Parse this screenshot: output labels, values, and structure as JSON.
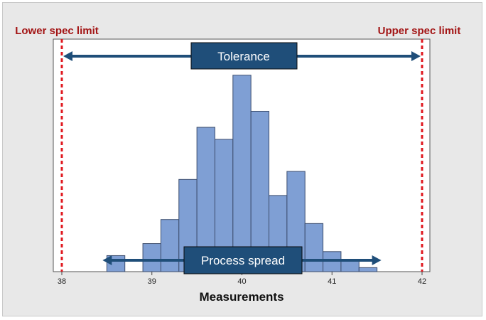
{
  "chart_data": {
    "type": "bar",
    "subtype": "histogram",
    "xlabel": "Measurements",
    "xlim": [
      38,
      42
    ],
    "x_ticks": [
      "38",
      "39",
      "40",
      "41",
      "42"
    ],
    "ylim": [
      0,
      29
    ],
    "bin_width": 0.2,
    "bins": [
      {
        "x0": 38.5,
        "x1": 38.7,
        "count": 2
      },
      {
        "x0": 38.7,
        "x1": 38.9,
        "count": 0
      },
      {
        "x0": 38.9,
        "x1": 39.1,
        "count": 3.5
      },
      {
        "x0": 39.1,
        "x1": 39.3,
        "count": 6.5
      },
      {
        "x0": 39.3,
        "x1": 39.5,
        "count": 11.5
      },
      {
        "x0": 39.5,
        "x1": 39.7,
        "count": 18
      },
      {
        "x0": 39.7,
        "x1": 39.9,
        "count": 16.5
      },
      {
        "x0": 39.9,
        "x1": 40.1,
        "count": 24.5
      },
      {
        "x0": 40.1,
        "x1": 40.3,
        "count": 20
      },
      {
        "x0": 40.3,
        "x1": 40.5,
        "count": 9.5
      },
      {
        "x0": 40.5,
        "x1": 40.7,
        "count": 12.5
      },
      {
        "x0": 40.7,
        "x1": 40.9,
        "count": 6
      },
      {
        "x0": 40.9,
        "x1": 41.1,
        "count": 2.5
      },
      {
        "x0": 41.1,
        "x1": 41.3,
        "count": 1.5
      },
      {
        "x0": 41.3,
        "x1": 41.5,
        "count": 0.5
      }
    ],
    "spec_limits": [
      {
        "label": "Lower spec limit",
        "x": 38
      },
      {
        "label": "Upper spec limit",
        "x": 42
      }
    ],
    "annotations": {
      "tolerance": {
        "label": "Tolerance",
        "from": 38,
        "to": 42
      },
      "process_spread": {
        "label": "Process spread",
        "from": 38.5,
        "to": 41.5
      }
    },
    "colors": {
      "bar_fill": "#7f9fd4",
      "bar_stroke": "#3d4e6e",
      "spec_line": "#e0181f",
      "spec_label": "#a31515",
      "arrow": "#1f4e79",
      "label_box": "#1f4e79"
    }
  }
}
